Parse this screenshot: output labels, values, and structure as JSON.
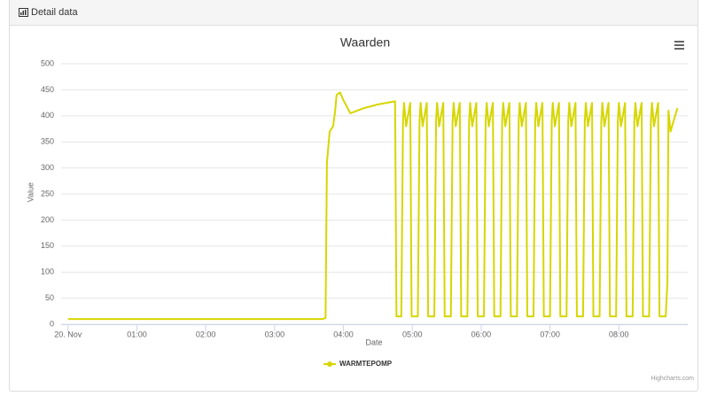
{
  "panel": {
    "title": "Detail data"
  },
  "chart_data": {
    "type": "line",
    "title": "Waarden",
    "x_label": "Date",
    "y_label": "Value",
    "x": [
      0,
      1,
      2,
      3,
      3.7,
      3.74,
      3.76,
      3.8,
      3.85,
      3.88,
      3.9,
      3.95,
      4.0,
      4.1,
      4.3,
      4.5,
      4.75,
      4.77,
      4.84,
      4.865,
      4.88,
      4.91,
      4.97,
      4.99,
      5.08,
      5.105,
      5.12,
      5.15,
      5.21,
      5.23,
      5.32,
      5.345,
      5.36,
      5.39,
      5.45,
      5.47,
      5.56,
      5.585,
      5.6,
      5.63,
      5.69,
      5.71,
      5.8,
      5.825,
      5.84,
      5.87,
      5.93,
      5.95,
      6.04,
      6.065,
      6.08,
      6.11,
      6.17,
      6.19,
      6.28,
      6.305,
      6.32,
      6.35,
      6.41,
      6.43,
      6.52,
      6.545,
      6.56,
      6.59,
      6.65,
      6.67,
      6.76,
      6.785,
      6.8,
      6.83,
      6.89,
      6.91,
      7.0,
      7.025,
      7.04,
      7.07,
      7.13,
      7.15,
      7.24,
      7.265,
      7.28,
      7.31,
      7.37,
      7.39,
      7.48,
      7.505,
      7.52,
      7.55,
      7.61,
      7.63,
      7.72,
      7.745,
      7.76,
      7.79,
      7.85,
      7.87,
      7.96,
      7.985,
      8.0,
      8.03,
      8.09,
      8.11,
      8.2,
      8.225,
      8.24,
      8.27,
      8.33,
      8.35,
      8.44,
      8.465,
      8.48,
      8.51,
      8.57,
      8.59,
      8.68,
      8.705,
      8.72,
      8.75,
      8.85
    ],
    "series": [
      {
        "name": "WARMTEPOMP",
        "color": "#d6d600",
        "values": [
          10,
          10,
          10,
          10,
          10,
          12,
          310,
          370,
          380,
          410,
          440,
          445,
          430,
          405,
          415,
          422,
          428,
          15,
          15,
          390,
          425,
          380,
          425,
          15,
          15,
          390,
          425,
          380,
          425,
          15,
          15,
          390,
          425,
          380,
          425,
          15,
          15,
          390,
          425,
          380,
          425,
          15,
          15,
          390,
          425,
          380,
          425,
          15,
          15,
          390,
          425,
          380,
          425,
          15,
          15,
          390,
          425,
          380,
          425,
          15,
          15,
          390,
          425,
          380,
          425,
          15,
          15,
          390,
          425,
          380,
          425,
          15,
          15,
          390,
          425,
          380,
          425,
          15,
          15,
          390,
          425,
          380,
          425,
          15,
          15,
          390,
          425,
          380,
          425,
          15,
          15,
          390,
          425,
          380,
          425,
          15,
          15,
          390,
          425,
          380,
          425,
          15,
          15,
          390,
          425,
          380,
          425,
          15,
          15,
          390,
          425,
          380,
          425,
          15,
          15,
          80,
          410,
          370,
          415
        ]
      }
    ],
    "xlim": [
      -0.1,
      9.0
    ],
    "xticks": [
      {
        "value": 0,
        "label": "20. Nov"
      },
      {
        "value": 1,
        "label": "01:00"
      },
      {
        "value": 2,
        "label": "02:00"
      },
      {
        "value": 3,
        "label": "03:00"
      },
      {
        "value": 4,
        "label": "04:00"
      },
      {
        "value": 5,
        "label": "05:00"
      },
      {
        "value": 6,
        "label": "06:00"
      },
      {
        "value": 7,
        "label": "07:00"
      },
      {
        "value": 8,
        "label": "08:00"
      }
    ],
    "ylim": [
      0,
      500
    ],
    "yticks": [
      0,
      50,
      100,
      150,
      200,
      250,
      300,
      350,
      400,
      450,
      500
    ],
    "grid": true,
    "legend": "bottom",
    "credits": "Highcharts.com"
  }
}
